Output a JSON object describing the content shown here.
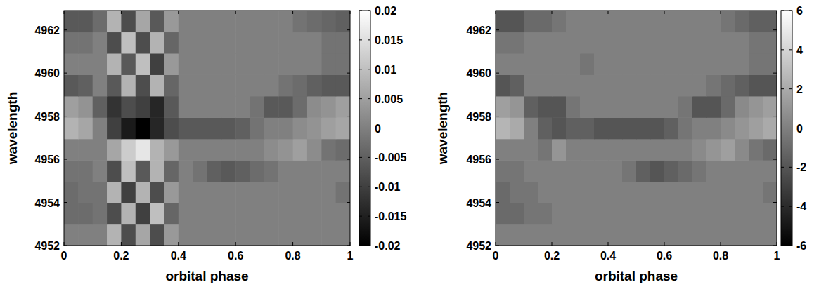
{
  "chart_data": [
    {
      "type": "heatmap",
      "x_label": "orbital phase",
      "y_label": "wavelength",
      "xlim": [
        0,
        1
      ],
      "ylim": [
        4952,
        4962.9
      ],
      "xticks": [
        0,
        0.2,
        0.4,
        0.6,
        0.8,
        1
      ],
      "yticks": [
        4952,
        4954,
        4956,
        4958,
        4960,
        4962
      ],
      "colorbar_range": [
        -0.02,
        0.02
      ],
      "colorbar_ticks": [
        -0.02,
        -0.015,
        -0.01,
        -0.005,
        0,
        0.005,
        0.01,
        0.015,
        0.02
      ],
      "cells": [
        [
          0,
          0,
          0,
          0.008,
          -0.008,
          0.006,
          -0.008,
          0.004,
          0,
          0,
          0,
          0,
          0,
          0,
          0,
          0,
          0,
          0,
          0,
          0
        ],
        [
          -0.003,
          -0.003,
          -0.002,
          -0.008,
          0.008,
          -0.01,
          0.01,
          -0.004,
          0,
          0,
          0,
          0,
          0,
          0,
          0,
          0,
          0,
          0,
          0,
          0
        ],
        [
          -0.003,
          -0.002,
          -0.002,
          0.008,
          -0.01,
          0.008,
          -0.008,
          0.004,
          0,
          0,
          0,
          0,
          0,
          0,
          0,
          0,
          0,
          0,
          0,
          -0.002
        ],
        [
          -0.002,
          -0.002,
          0,
          -0.008,
          0.01,
          -0.006,
          0.008,
          -0.004,
          0,
          -0.002,
          -0.005,
          -0.006,
          -0.005,
          -0.003,
          -0.002,
          0,
          0,
          0,
          0,
          0
        ],
        [
          0,
          0,
          0,
          0.006,
          0.012,
          0.016,
          0.008,
          0.004,
          0,
          0,
          0,
          0,
          0,
          0,
          0.002,
          0.003,
          0.005,
          0.002,
          -0.002,
          -0.003
        ],
        [
          0.008,
          0.006,
          0,
          -0.01,
          -0.016,
          -0.02,
          -0.014,
          -0.008,
          -0.006,
          -0.006,
          -0.006,
          -0.006,
          -0.005,
          -0.002,
          0,
          0,
          0.002,
          0.003,
          0.005,
          0.006
        ],
        [
          0.005,
          0.003,
          -0.005,
          -0.012,
          -0.008,
          -0.01,
          -0.014,
          -0.006,
          0,
          0,
          0,
          0,
          0,
          -0.002,
          -0.006,
          -0.006,
          -0.003,
          0.002,
          0.003,
          0.005
        ],
        [
          -0.006,
          -0.005,
          0,
          -0.006,
          0.008,
          -0.008,
          0.008,
          -0.004,
          0,
          0,
          0,
          0,
          0,
          0,
          0,
          -0.002,
          -0.003,
          -0.005,
          -0.006,
          -0.006
        ],
        [
          0,
          0,
          0,
          0.008,
          -0.006,
          0.01,
          -0.01,
          0.004,
          0,
          0,
          0,
          0,
          0,
          0,
          0,
          0,
          0,
          0,
          -0.002,
          -0.002
        ],
        [
          -0.002,
          -0.002,
          0,
          -0.008,
          0.01,
          -0.008,
          0.008,
          -0.004,
          0,
          0,
          0,
          0,
          0,
          0,
          0,
          0,
          0,
          0,
          -0.002,
          -0.002
        ],
        [
          -0.006,
          -0.006,
          -0.003,
          0.008,
          -0.008,
          0.006,
          -0.006,
          0.004,
          0,
          0,
          0,
          0,
          0,
          0,
          0,
          0,
          -0.002,
          -0.003,
          -0.004,
          -0.005
        ]
      ]
    },
    {
      "type": "heatmap",
      "x_label": "orbital phase",
      "y_label": "wavelength",
      "xlim": [
        0,
        1
      ],
      "ylim": [
        4952,
        4962.9
      ],
      "xticks": [
        0,
        0.2,
        0.4,
        0.6,
        0.8,
        1
      ],
      "yticks": [
        4952,
        4954,
        4956,
        4958,
        4960,
        4962
      ],
      "colorbar_range": [
        -6,
        6
      ],
      "colorbar_ticks": [
        -6,
        -4,
        -2,
        0,
        2,
        4,
        6
      ],
      "cells": [
        [
          0,
          0,
          0,
          0,
          0,
          0,
          0,
          0,
          0,
          0,
          0,
          0,
          0,
          0,
          0,
          0,
          0,
          0,
          0,
          0
        ],
        [
          -1,
          -1,
          -0.5,
          -0.5,
          0,
          0,
          0,
          0,
          0,
          0,
          0,
          0,
          0,
          0,
          0,
          0,
          0,
          0,
          0,
          0
        ],
        [
          -1,
          -0.5,
          -0.5,
          0,
          0,
          0,
          0,
          0,
          0,
          0,
          0,
          0,
          0,
          0,
          0,
          0,
          0,
          0,
          0,
          -0.5
        ],
        [
          -0.5,
          -0.5,
          0,
          0,
          0,
          0,
          0,
          0,
          0,
          -0.5,
          -1.5,
          -2,
          -1.5,
          -1,
          -0.5,
          0,
          0,
          0,
          0,
          0
        ],
        [
          0,
          0,
          0,
          -0.5,
          1,
          0,
          0,
          0,
          0,
          0,
          0,
          0,
          0,
          0,
          0.5,
          1,
          1.5,
          0.5,
          -0.5,
          -1
        ],
        [
          2.5,
          2,
          0,
          -1.5,
          -2,
          -1.5,
          -1.5,
          -2,
          -2,
          -2,
          -2,
          -2,
          -1.5,
          -0.5,
          0,
          0,
          0.5,
          1,
          1.5,
          2
        ],
        [
          1.5,
          1,
          -1.5,
          -2,
          -2,
          -0.5,
          0,
          0,
          0,
          0,
          0,
          0,
          0,
          -0.5,
          -2,
          -2,
          -1,
          0.5,
          1,
          1.5
        ],
        [
          -2,
          -1.5,
          0,
          0,
          0,
          0,
          0,
          0,
          0,
          0,
          0,
          0,
          0,
          0,
          0,
          -0.5,
          -1,
          -1.5,
          -2,
          -2
        ],
        [
          0,
          0,
          0,
          0,
          0,
          0,
          -0.5,
          0,
          0,
          0,
          0,
          0,
          0,
          0,
          0,
          0,
          0,
          0,
          -0.5,
          -0.5
        ],
        [
          -0.5,
          -0.5,
          0,
          0,
          0,
          0,
          0,
          0,
          0,
          0,
          0,
          0,
          0,
          0,
          0,
          0,
          0,
          0,
          -0.5,
          -0.5
        ],
        [
          -2,
          -2,
          -1,
          -1,
          -0.5,
          0,
          0,
          0,
          0,
          0,
          0,
          0,
          0,
          0,
          0,
          0,
          -0.5,
          -1,
          -1.5,
          -1.5
        ]
      ]
    }
  ]
}
